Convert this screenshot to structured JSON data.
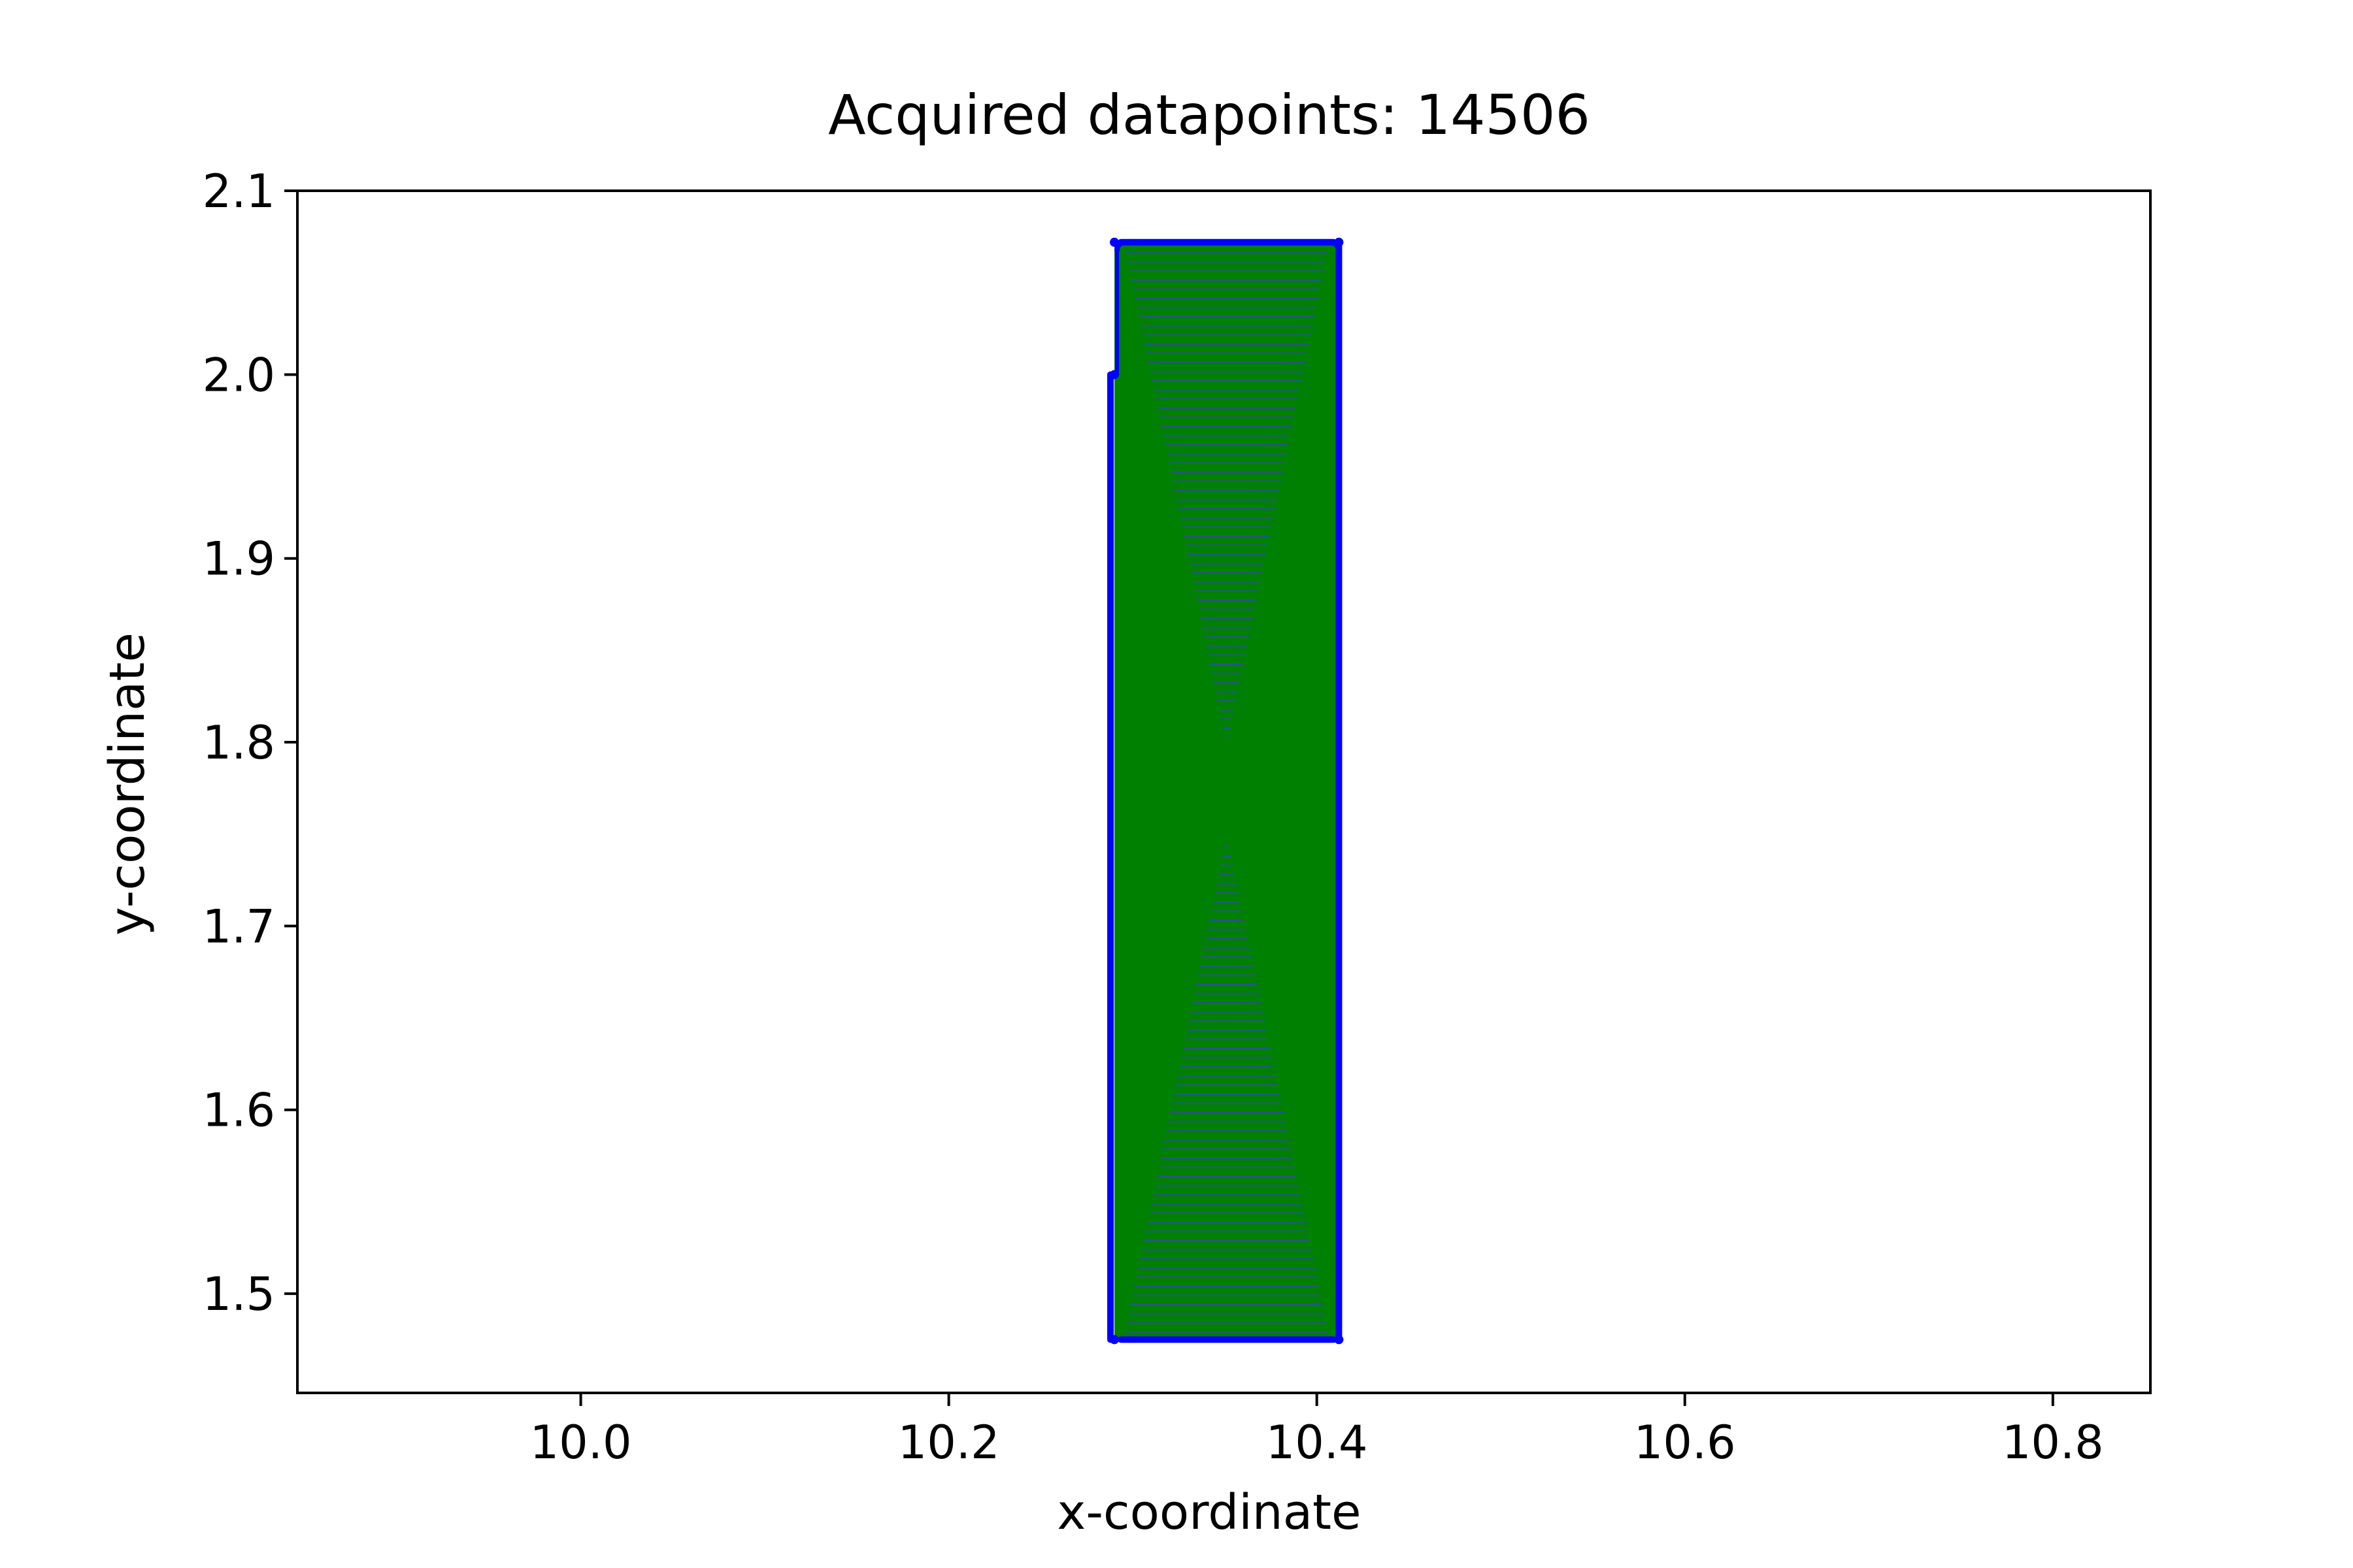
{
  "chart_data": {
    "type": "scatter",
    "title": "Acquired datapoints: 14506",
    "xlabel": "x-coordinate",
    "ylabel": "y-coordinate",
    "xlim": [
      9.846,
      10.853
    ],
    "ylim": [
      1.446,
      2.1
    ],
    "xticks": [
      10.0,
      10.2,
      10.4,
      10.6,
      10.8
    ],
    "xtick_labels": [
      "10.0",
      "10.2",
      "10.4",
      "10.6",
      "10.8"
    ],
    "yticks": [
      1.5,
      1.6,
      1.7,
      1.8,
      1.9,
      2.0,
      2.1
    ],
    "ytick_labels": [
      "1.5",
      "1.6",
      "1.7",
      "1.8",
      "1.9",
      "2.0",
      "2.1"
    ],
    "grid": false,
    "legend": "none",
    "region": {
      "x_min": 10.29,
      "x_max": 10.412,
      "y_min": 1.475,
      "y_max": 2.072
    },
    "left_edge_y_top": 2.0,
    "point_count": 14506,
    "series": [
      {
        "marker": "line",
        "color": "#008000",
        "description_type": "zigzag fill",
        "points": [
          [
            10.29,
            1.475
          ],
          [
            10.412,
            1.475
          ],
          [
            10.29,
            2.072
          ],
          [
            10.412,
            2.072
          ]
        ]
      },
      {
        "marker": "dot",
        "color": "#0000ff",
        "points": [
          [
            10.29,
            1.475
          ],
          [
            10.412,
            1.475
          ],
          [
            10.29,
            2.0
          ],
          [
            10.412,
            2.072
          ],
          [
            10.29,
            2.072
          ]
        ]
      }
    ],
    "colors": {
      "fill": "#008000",
      "stripes": "#2e4ea8",
      "outline": "#0000ff",
      "axes": "#000000"
    }
  }
}
